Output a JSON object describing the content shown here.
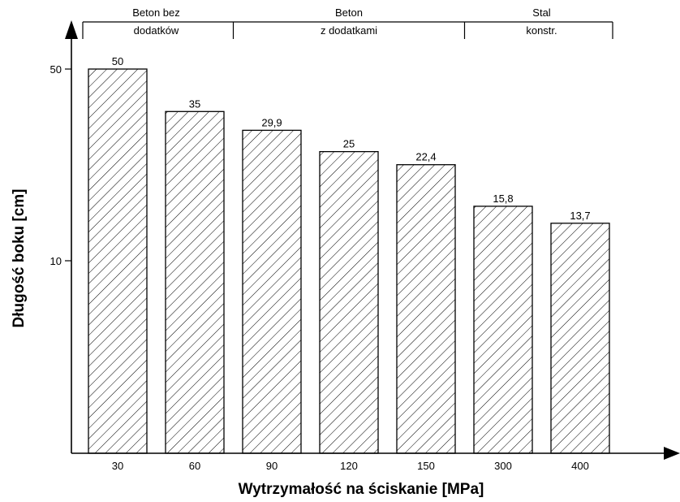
{
  "chart_data": {
    "type": "bar",
    "categories": [
      "30",
      "60",
      "90",
      "120",
      "150",
      "300",
      "400"
    ],
    "values": [
      50,
      35,
      29.9,
      25,
      22.4,
      15.8,
      13.7
    ],
    "value_labels": [
      "50",
      "35",
      "29,9",
      "25",
      "22,4",
      "15,8",
      "13,7"
    ],
    "xlabel": "Wytrzymałość na ściskanie [MPa]",
    "ylabel": "Długość boku [cm]",
    "yscale": "log",
    "yticks": [
      {
        "value": 10,
        "label": "10"
      },
      {
        "value": 50,
        "label": "50"
      }
    ],
    "fill": "diagonal hatch",
    "groups": [
      {
        "lines": [
          "Beton bez",
          "dodatków"
        ],
        "first": 0,
        "last": 1
      },
      {
        "lines": [
          "Beton",
          "z dodatkami"
        ],
        "first": 2,
        "last": 4
      },
      {
        "lines": [
          "Stal",
          "konstr."
        ],
        "first": 5,
        "last": 6
      }
    ]
  },
  "colors": {
    "ink": "#000000",
    "background": "#ffffff"
  }
}
